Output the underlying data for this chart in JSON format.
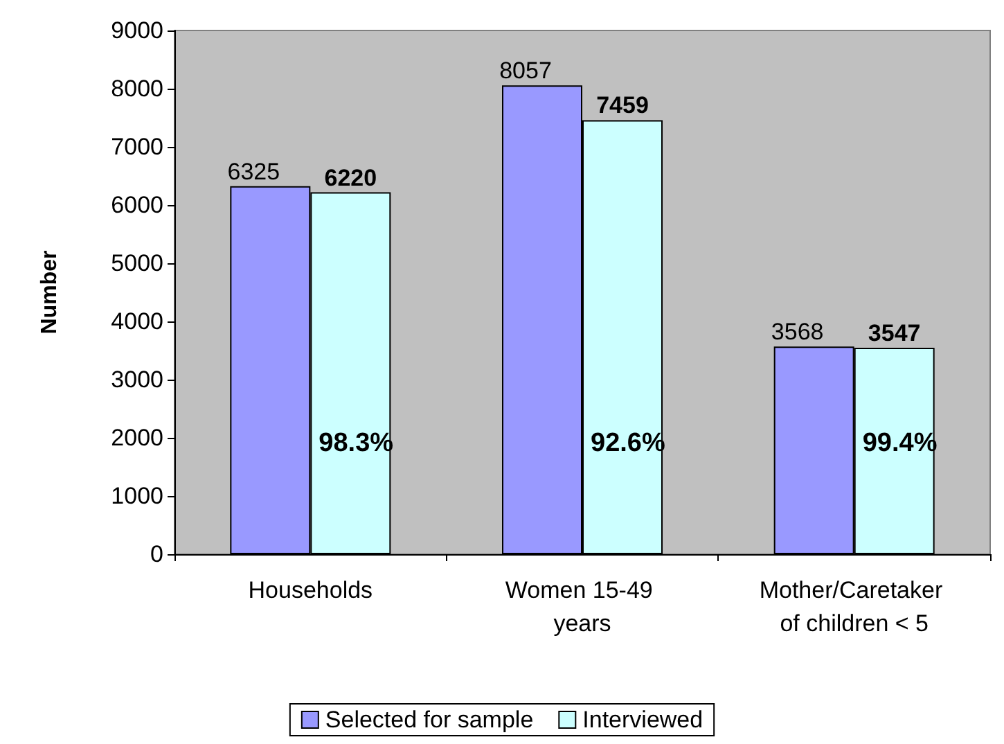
{
  "chart_data": {
    "type": "bar",
    "ylabel": "Number",
    "categories": [
      "Households",
      "Women 15-49 years",
      "Mother/Caretaker of children < 5"
    ],
    "series": [
      {
        "name": "Selected for sample",
        "color": "#9999ff",
        "values": [
          6325,
          8057,
          3568
        ]
      },
      {
        "name": "Interviewed",
        "color": "#ccffff",
        "values": [
          6220,
          7459,
          3547
        ]
      }
    ],
    "ylim": [
      0,
      9000
    ],
    "yticks": [
      0,
      1000,
      2000,
      3000,
      4000,
      5000,
      6000,
      7000,
      8000,
      9000
    ],
    "grid": false,
    "legend": "bottom",
    "data_labels": true,
    "annotations": [
      {
        "text": "98.3%",
        "x": "Households",
        "y": 1900
      },
      {
        "text": "92.6%",
        "x": "Women 15-49 years",
        "y": 1900
      },
      {
        "text": "99.4%",
        "x": "Mother/Caretaker of children < 5",
        "y": 1900
      }
    ]
  }
}
